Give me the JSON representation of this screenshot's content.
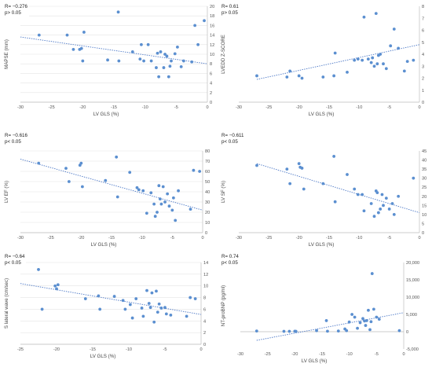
{
  "colors": {
    "point": "#5b8fd0",
    "trend": "#4472c4",
    "grid": "#e3e3e3",
    "axis": "#bdbdbd"
  },
  "chart_data": [
    {
      "type": "scatter",
      "stats": [
        "R= −0.276",
        "p> 0.05"
      ],
      "xlabel": "LV GLS (%)",
      "ylabel": "MAPSE (mm)",
      "xlim": [
        -30,
        0
      ],
      "ylim": [
        0,
        20
      ],
      "xticks": [
        -30,
        -25,
        -20,
        -15,
        -10,
        -5,
        0
      ],
      "xtick_labels": [
        "-30",
        "-25",
        "-20",
        "-15",
        "-10",
        "-5",
        "0"
      ],
      "yticks": [
        0,
        2,
        4,
        6,
        8,
        10,
        12,
        14,
        16,
        18,
        20
      ],
      "ytick_labels": [
        "0",
        "2",
        "4",
        "6",
        "8",
        "10",
        "12",
        "14",
        "16",
        "18",
        "20"
      ],
      "grid": true,
      "trendline": {
        "x": [
          -30,
          0
        ],
        "y": [
          13.6,
          8.0
        ]
      },
      "points": [
        [
          -27,
          14
        ],
        [
          -22.5,
          14
        ],
        [
          -21.5,
          11
        ],
        [
          -20.5,
          11
        ],
        [
          -20.2,
          11.2
        ],
        [
          -20,
          8.6
        ],
        [
          -19.8,
          14.6
        ],
        [
          -16,
          8.8
        ],
        [
          -14.3,
          18.8
        ],
        [
          -14.2,
          8.6
        ],
        [
          -12,
          10.5
        ],
        [
          -10.8,
          9
        ],
        [
          -10.6,
          12
        ],
        [
          -10.2,
          8.6
        ],
        [
          -9.5,
          12
        ],
        [
          -9,
          8.6
        ],
        [
          -8.2,
          7.2
        ],
        [
          -8,
          10.2
        ],
        [
          -7.8,
          5.3
        ],
        [
          -7.5,
          10.5
        ],
        [
          -7,
          7.2
        ],
        [
          -6.8,
          10
        ],
        [
          -6.5,
          9.6
        ],
        [
          -6.2,
          5.3
        ],
        [
          -6,
          7.5
        ],
        [
          -5.8,
          8.6
        ],
        [
          -5.2,
          10.1
        ],
        [
          -4.8,
          11.5
        ],
        [
          -4.2,
          7.4
        ],
        [
          -3.8,
          8.6
        ],
        [
          -2.5,
          8.4
        ],
        [
          -2,
          16
        ],
        [
          -1.5,
          12
        ],
        [
          -0.5,
          17
        ]
      ]
    },
    {
      "type": "scatter",
      "stats": [
        "R= 0.61",
        "p> 0.05"
      ],
      "xlabel": "LV GLS (%)",
      "ylabel": "LVEDD Z-SCORE",
      "xlim": [
        -30,
        0
      ],
      "ylim": [
        0,
        8
      ],
      "xticks": [
        -30,
        -25,
        -20,
        -15,
        -10,
        -5,
        0
      ],
      "xtick_labels": [
        "-30",
        "-25",
        "-20",
        "-15",
        "-10",
        "-5",
        "0"
      ],
      "yticks": [
        0,
        1,
        2,
        3,
        4,
        5,
        6,
        7,
        8
      ],
      "ytick_labels": [
        "0",
        "1",
        "2",
        "3",
        "4",
        "5",
        "6",
        "7",
        "8"
      ],
      "grid": false,
      "trendline": {
        "x": [
          -27,
          0
        ],
        "y": [
          1.9,
          4.8
        ]
      },
      "points": [
        [
          -27,
          2.2
        ],
        [
          -22,
          2.1
        ],
        [
          -21.5,
          2.6
        ],
        [
          -20,
          2.2
        ],
        [
          -19.5,
          2.0
        ],
        [
          -16,
          2.1
        ],
        [
          -14.2,
          2.2
        ],
        [
          -14,
          4.1
        ],
        [
          -12,
          2.5
        ],
        [
          -10.8,
          3.5
        ],
        [
          -10.2,
          3.6
        ],
        [
          -9.5,
          3.5
        ],
        [
          -9.2,
          7.1
        ],
        [
          -8.5,
          3.6
        ],
        [
          -8,
          3.3
        ],
        [
          -7.8,
          3.7
        ],
        [
          -7.5,
          3.0
        ],
        [
          -7.2,
          7.4
        ],
        [
          -7,
          3.2
        ],
        [
          -6.8,
          3.9
        ],
        [
          -6.5,
          4.0
        ],
        [
          -6,
          3.2
        ],
        [
          -5.5,
          2.8
        ],
        [
          -4.8,
          4.7
        ],
        [
          -4.2,
          6.1
        ],
        [
          -3.5,
          4.5
        ],
        [
          -2.5,
          2.6
        ],
        [
          -2,
          3.4
        ],
        [
          -1,
          3.5
        ]
      ]
    },
    {
      "type": "scatter",
      "stats": [
        "R= −0.616",
        "p< 0.05"
      ],
      "xlabel": "LV GLS (%)",
      "ylabel": "LV EF (%)",
      "xlim": [
        -30,
        0
      ],
      "ylim": [
        0,
        80
      ],
      "xticks": [
        -30,
        -25,
        -20,
        -15,
        -10,
        -5,
        0
      ],
      "xtick_labels": [
        "-30",
        "-25",
        "-20",
        "-15",
        "-10",
        "-5",
        "0"
      ],
      "yticks": [
        0,
        10,
        20,
        30,
        40,
        50,
        60,
        70,
        80
      ],
      "ytick_labels": [
        "0",
        "10",
        "20",
        "30",
        "40",
        "50",
        "60",
        "70",
        "80"
      ],
      "grid": true,
      "trendline": {
        "x": [
          -30,
          0
        ],
        "y": [
          72,
          22
        ]
      },
      "points": [
        [
          -27,
          68
        ],
        [
          -22.5,
          63
        ],
        [
          -22,
          50
        ],
        [
          -20.2,
          66
        ],
        [
          -20,
          68
        ],
        [
          -19.8,
          45
        ],
        [
          -16,
          51
        ],
        [
          -14.2,
          74
        ],
        [
          -14,
          35
        ],
        [
          -12,
          59
        ],
        [
          -10.8,
          44
        ],
        [
          -10.5,
          42
        ],
        [
          -9.8,
          41
        ],
        [
          -9.2,
          19
        ],
        [
          -8.5,
          39
        ],
        [
          -8,
          28
        ],
        [
          -7.8,
          16
        ],
        [
          -7.5,
          20
        ],
        [
          -7.2,
          46
        ],
        [
          -7,
          33
        ],
        [
          -6.8,
          28
        ],
        [
          -6.5,
          45
        ],
        [
          -6.2,
          30
        ],
        [
          -5.8,
          38
        ],
        [
          -5.5,
          26
        ],
        [
          -5,
          22
        ],
        [
          -4.8,
          34
        ],
        [
          -4.5,
          12
        ],
        [
          -4,
          41
        ],
        [
          -2,
          23
        ],
        [
          -1.5,
          61
        ],
        [
          -0.5,
          60
        ]
      ]
    },
    {
      "type": "scatter",
      "stats": [
        "R= −0.611",
        "p< 0.05"
      ],
      "xlabel": "LV GLS (%)",
      "ylabel": "LV SF (%)",
      "xlim": [
        -30,
        0
      ],
      "ylim": [
        0,
        45
      ],
      "xticks": [
        -30,
        -25,
        -20,
        -15,
        -10,
        -5,
        0
      ],
      "xtick_labels": [
        "-30",
        "-25",
        "-20",
        "-15",
        "-10",
        "-5",
        "0"
      ],
      "yticks": [
        0,
        5,
        10,
        15,
        20,
        25,
        30,
        35,
        40,
        45
      ],
      "ytick_labels": [
        "0",
        "5",
        "10",
        "15",
        "20",
        "25",
        "30",
        "35",
        "40",
        "45"
      ],
      "grid": false,
      "trendline": {
        "x": [
          -27,
          0
        ],
        "y": [
          38,
          11
        ]
      },
      "points": [
        [
          -27,
          37
        ],
        [
          -22,
          35
        ],
        [
          -21.5,
          27
        ],
        [
          -20,
          38
        ],
        [
          -19.8,
          36
        ],
        [
          -19.5,
          35.5
        ],
        [
          -19.2,
          24
        ],
        [
          -16,
          27
        ],
        [
          -14.2,
          42
        ],
        [
          -14,
          17
        ],
        [
          -12,
          32
        ],
        [
          -10.8,
          24
        ],
        [
          -10.2,
          21
        ],
        [
          -9.5,
          21
        ],
        [
          -9.2,
          12
        ],
        [
          -8,
          16
        ],
        [
          -7.5,
          9
        ],
        [
          -7.2,
          23
        ],
        [
          -7,
          22
        ],
        [
          -6.8,
          11
        ],
        [
          -6.5,
          13
        ],
        [
          -6.2,
          21
        ],
        [
          -6,
          15
        ],
        [
          -5.5,
          19
        ],
        [
          -5,
          13
        ],
        [
          -4.5,
          16
        ],
        [
          -4.2,
          10
        ],
        [
          -3.5,
          20
        ],
        [
          -1,
          30
        ]
      ]
    },
    {
      "type": "scatter",
      "stats": [
        "R= −0.64",
        "p< 0.05"
      ],
      "xlabel": "LV GLS (%)",
      "ylabel": "S lateral wave (cm/sec)",
      "xlim": [
        -25,
        0
      ],
      "ylim": [
        0,
        14
      ],
      "xticks": [
        -25,
        -20,
        -15,
        -10,
        -5,
        0
      ],
      "xtick_labels": [
        "-25",
        "-20",
        "-15",
        "-10",
        "-5",
        "0"
      ],
      "yticks": [
        0,
        2,
        4,
        6,
        8,
        10,
        12,
        14
      ],
      "ytick_labels": [
        "0",
        "2",
        "4",
        "6",
        "8",
        "10",
        "12",
        "14"
      ],
      "grid": true,
      "trendline": {
        "x": [
          -25,
          0
        ],
        "y": [
          10.4,
          5.1
        ]
      },
      "points": [
        [
          -22.5,
          12.8
        ],
        [
          -22,
          6
        ],
        [
          -20.2,
          10
        ],
        [
          -20,
          9.5
        ],
        [
          -19.8,
          10.2
        ],
        [
          -16,
          7.8
        ],
        [
          -14.2,
          8.3
        ],
        [
          -14,
          6
        ],
        [
          -12,
          8.2
        ],
        [
          -10.8,
          7.5
        ],
        [
          -10.5,
          6
        ],
        [
          -9.8,
          6.8
        ],
        [
          -9.5,
          4.5
        ],
        [
          -9,
          7.8
        ],
        [
          -8.2,
          6.2
        ],
        [
          -8,
          4.8
        ],
        [
          -7.5,
          9.2
        ],
        [
          -7.2,
          7
        ],
        [
          -7,
          6.3
        ],
        [
          -6.8,
          8.8
        ],
        [
          -6.5,
          3.8
        ],
        [
          -6.2,
          9.1
        ],
        [
          -6,
          5.5
        ],
        [
          -5.8,
          6.9
        ],
        [
          -5.5,
          6.2
        ],
        [
          -5,
          6.3
        ],
        [
          -4.8,
          5.2
        ],
        [
          -4.2,
          5
        ],
        [
          -2,
          4.8
        ],
        [
          -1.5,
          8
        ],
        [
          -0.8,
          7.8
        ]
      ]
    },
    {
      "type": "scatter",
      "stats": [
        "R= 0.74",
        "p< 0.05"
      ],
      "xlabel": "LV GLS (%)",
      "ylabel": "NT-proBNP (pg/ml)",
      "xlim": [
        -30,
        0
      ],
      "ylim": [
        -5000,
        20000
      ],
      "xticks": [
        -30,
        -25,
        -20,
        -15,
        -10,
        -5,
        0
      ],
      "xtick_labels": [
        "-30",
        "-25",
        "-20",
        "-15",
        "-10",
        "-5",
        "0"
      ],
      "yticks": [
        -5000,
        0,
        5000,
        10000,
        15000,
        20000
      ],
      "ytick_labels": [
        "-5,000",
        "0",
        "5,000",
        "10,000",
        "15,000",
        "20,000"
      ],
      "grid": false,
      "trendline": {
        "x": [
          -27,
          0
        ],
        "y": [
          -2500,
          5500
        ]
      },
      "points": [
        [
          -27,
          200
        ],
        [
          -22,
          100
        ],
        [
          -21,
          100
        ],
        [
          -20,
          150
        ],
        [
          -19.8,
          100
        ],
        [
          -16,
          300
        ],
        [
          -14.2,
          3200
        ],
        [
          -14,
          150
        ],
        [
          -12,
          200
        ],
        [
          -10.8,
          800
        ],
        [
          -10.5,
          300
        ],
        [
          -10,
          2800
        ],
        [
          -9.5,
          5000
        ],
        [
          -9,
          4200
        ],
        [
          -8.5,
          1000
        ],
        [
          -8,
          2600
        ],
        [
          -7.5,
          3800
        ],
        [
          -7.2,
          3100
        ],
        [
          -7,
          1800
        ],
        [
          -6.8,
          3200
        ],
        [
          -6.5,
          6200
        ],
        [
          -6.2,
          600
        ],
        [
          -6,
          2900
        ],
        [
          -5.8,
          16800
        ],
        [
          -5.5,
          6500
        ],
        [
          -5,
          4200
        ],
        [
          -4.5,
          3600
        ],
        [
          -0.8,
          300
        ]
      ]
    }
  ]
}
